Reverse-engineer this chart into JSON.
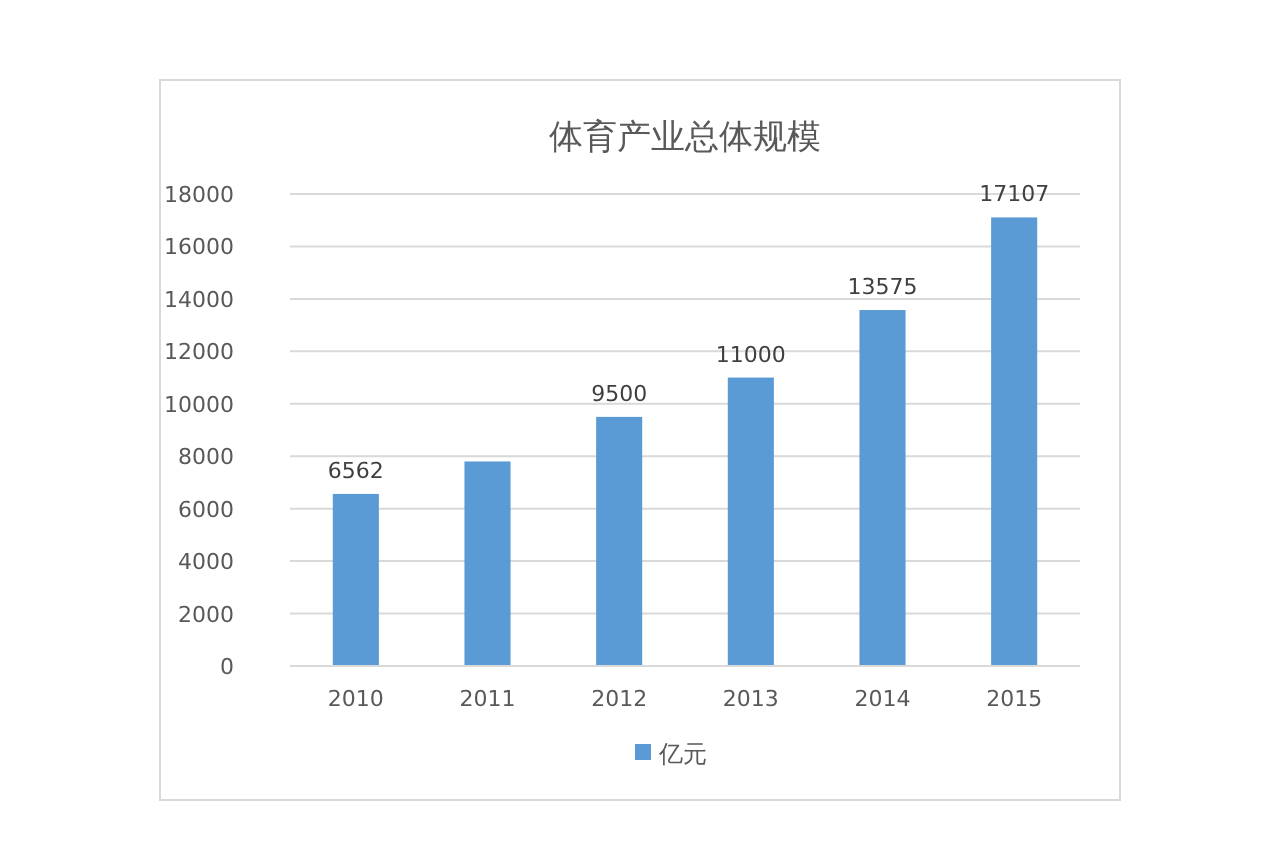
{
  "chart_data": {
    "type": "bar",
    "title": "体育产业总体规模",
    "categories": [
      "2010",
      "2011",
      "2012",
      "2013",
      "2014",
      "2015"
    ],
    "series": [
      {
        "name": "亿元",
        "color": "#5b9bd5",
        "values": [
          6562,
          7800,
          9500,
          11000,
          13575,
          17107
        ],
        "value_labels": [
          "6562",
          null,
          "9500",
          "11000",
          "13575",
          "17107"
        ]
      }
    ],
    "ylim": [
      0,
      18000
    ],
    "yticks": [
      0,
      2000,
      4000,
      6000,
      8000,
      10000,
      12000,
      14000,
      16000,
      18000
    ],
    "grid": "y",
    "legend": "bottom"
  }
}
